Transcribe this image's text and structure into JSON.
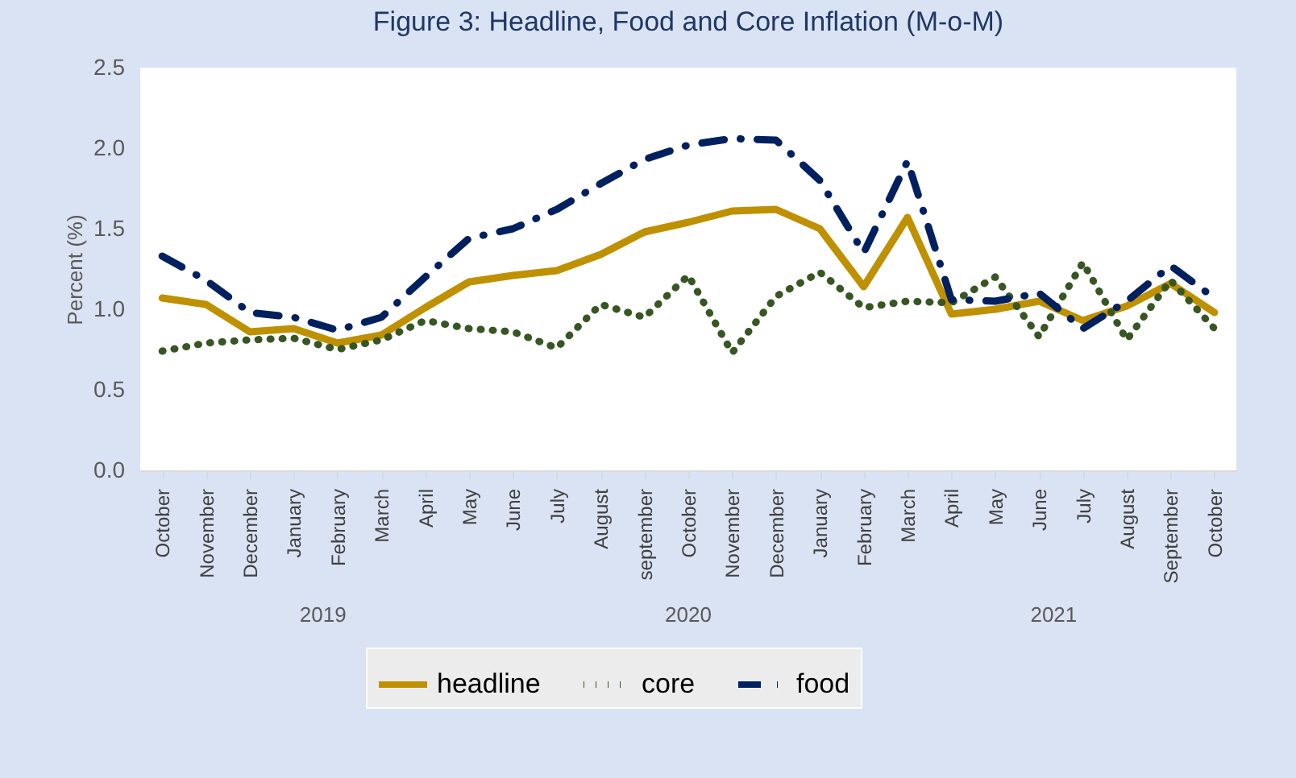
{
  "chart_data": {
    "type": "line",
    "title": "Figure 3: Headline, Food and Core Inflation (M-o-M)",
    "ylabel": "Percent (%)",
    "categories": [
      "October",
      "November",
      "December",
      "January",
      "February",
      "March",
      "April",
      "May",
      "June",
      "July",
      "August",
      "september",
      "October",
      "November",
      "December",
      "January",
      "February",
      "March",
      "April",
      "May",
      "June",
      "July",
      "August",
      "September",
      "October"
    ],
    "series": [
      {
        "name": "headline",
        "color": "#bf9000",
        "line_style": "solid",
        "values": [
          1.07,
          1.03,
          0.86,
          0.88,
          0.79,
          0.84,
          1.01,
          1.17,
          1.21,
          1.24,
          1.34,
          1.48,
          1.54,
          1.61,
          1.62,
          1.5,
          1.14,
          1.57,
          0.97,
          1.0,
          1.05,
          0.93,
          1.02,
          1.16,
          0.98
        ]
      },
      {
        "name": "core",
        "color": "#375623",
        "line_style": "dotted",
        "values": [
          0.74,
          0.79,
          0.81,
          0.82,
          0.75,
          0.81,
          0.93,
          0.88,
          0.86,
          0.76,
          1.03,
          0.95,
          1.21,
          0.73,
          1.08,
          1.23,
          1.01,
          1.05,
          1.04,
          1.2,
          0.83,
          1.29,
          0.81,
          1.18,
          0.88
        ]
      },
      {
        "name": "food",
        "color": "#002060",
        "line_style": "dashdot",
        "values": [
          1.33,
          1.18,
          0.98,
          0.95,
          0.87,
          0.95,
          1.2,
          1.44,
          1.5,
          1.62,
          1.78,
          1.93,
          2.02,
          2.06,
          2.05,
          1.8,
          1.35,
          1.92,
          1.06,
          1.05,
          1.1,
          0.88,
          1.05,
          1.27,
          1.07
        ]
      }
    ],
    "annotations": [
      "2019",
      "2020",
      "2021"
    ],
    "ylim": [
      0,
      2.5
    ],
    "yticks": [
      {
        "value": 0,
        "label": "0.0"
      },
      0.5,
      {
        "value": 1,
        "label": "1.0"
      },
      1.5,
      {
        "value": 2,
        "label": "2.0"
      },
      2.5
    ],
    "grid": false,
    "legend": "bottom"
  }
}
